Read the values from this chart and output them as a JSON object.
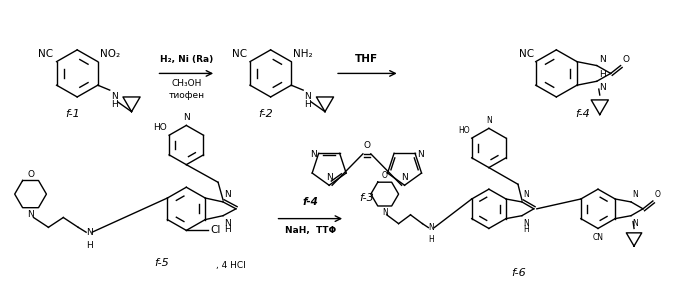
{
  "background_color": "#ffffff",
  "fig_width": 6.98,
  "fig_height": 2.94,
  "dpi": 100,
  "arrow1_text_top": "H₂, Ni (Ra)",
  "arrow1_text_bot1": "CH₃OH",
  "arrow1_text_bot2": "тиофен",
  "arrow2_text_top": "THF",
  "arrow3_text_top": "f-4",
  "arrow3_text_bot": "NaH,  ТТΦ",
  "f1_label": "f-1",
  "f2_label": "f-2",
  "f3_label": "f-3",
  "f4_label": "f-4",
  "f5_label": "f-5",
  "f6_label": "f-6"
}
